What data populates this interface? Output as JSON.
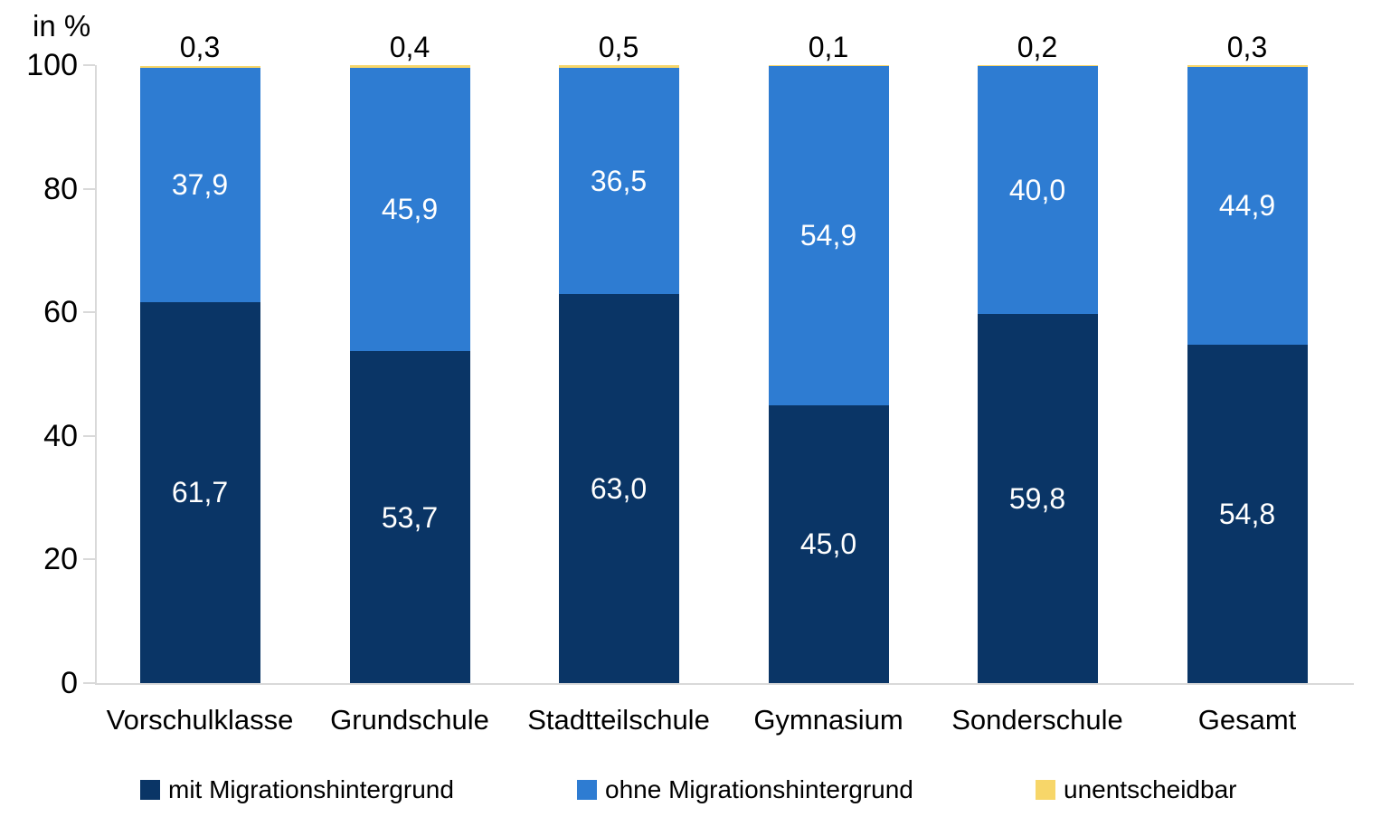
{
  "page": {
    "background": "#ffffff"
  },
  "chart_data": {
    "type": "bar",
    "stacked": true,
    "unit_label": "in %",
    "categories": [
      "Vorschulklasse",
      "Grundschule",
      "Stadtteilschule",
      "Gymnasium",
      "Sonderschule",
      "Gesamt"
    ],
    "series": [
      {
        "name": "mit Migrationshintergrund",
        "color": "#0A3566",
        "values": [
          61.7,
          53.7,
          63.0,
          45.0,
          59.8,
          54.8
        ]
      },
      {
        "name": "ohne Migrationshintergrund",
        "color": "#2E7CD2",
        "values": [
          37.9,
          45.9,
          36.5,
          54.9,
          40.0,
          44.9
        ]
      },
      {
        "name": "unentscheidbar",
        "color": "#F7D669",
        "values": [
          0.3,
          0.4,
          0.5,
          0.1,
          0.2,
          0.3
        ]
      }
    ],
    "y_ticks": [
      0,
      20,
      40,
      60,
      80,
      100
    ],
    "ylim": [
      0,
      100
    ],
    "grid": false,
    "legend_position": "bottom",
    "decimal_separator": ",",
    "axis_color": "#D9D9D9",
    "inside_label_color": "#FFFFFF",
    "top_label_color": "#000000"
  }
}
